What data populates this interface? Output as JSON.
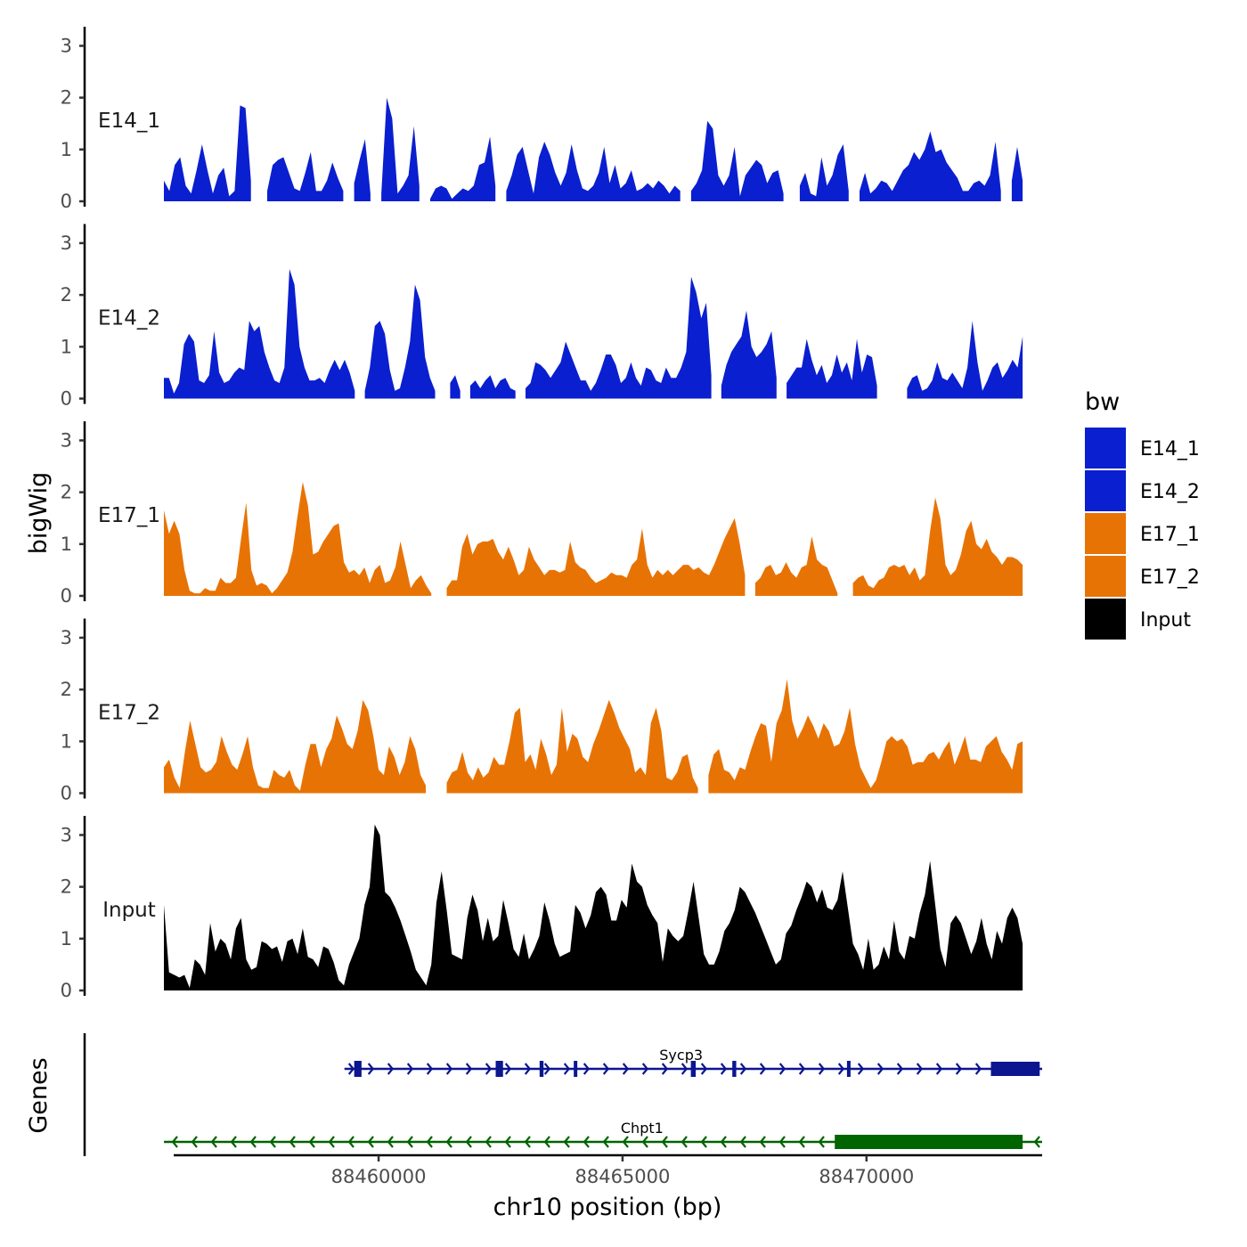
{
  "chart_data": {
    "type": "area",
    "title": "",
    "xlabel": "chr10 position (bp)",
    "ylabel": "bigWig",
    "genes_panel_label": "Genes",
    "xlim": [
      88455800,
      88473600
    ],
    "data_range": [
      88455600,
      88473200
    ],
    "x_ticks": [
      88460000,
      88465000,
      88470000
    ],
    "x_tick_labels": [
      "88460000",
      "88465000",
      "88470000"
    ],
    "ylim": [
      0,
      3.3
    ],
    "y_ticks": [
      0,
      1,
      2,
      3
    ],
    "y_tick_labels": [
      "0",
      "1",
      "2",
      "3"
    ],
    "legend": {
      "title": "bw",
      "position": "right",
      "entries": [
        {
          "label": "E14_1",
          "color": "#0a1fcf"
        },
        {
          "label": "E14_2",
          "color": "#0a1fcf"
        },
        {
          "label": "E17_1",
          "color": "#e87305"
        },
        {
          "label": "E17_2",
          "color": "#e87305"
        },
        {
          "label": "Input",
          "color": "#000000"
        }
      ]
    },
    "series": [
      {
        "name": "E14_1",
        "color": "#0a1fcf",
        "values": [
          0.4,
          0.2,
          0.7,
          0.85,
          0.3,
          0.15,
          0.6,
          1.1,
          0.6,
          0.15,
          0.5,
          0.65,
          0.1,
          0.2,
          1.85,
          1.8,
          0.4,
          null,
          null,
          0.2,
          0.7,
          0.8,
          0.85,
          0.55,
          0.25,
          0.2,
          0.55,
          0.95,
          0.2,
          0.2,
          0.4,
          0.75,
          0.45,
          0.2,
          null,
          0.35,
          0.8,
          1.2,
          0.15,
          null,
          0.15,
          2.0,
          1.6,
          0.15,
          0.3,
          0.5,
          1.45,
          0.3,
          null,
          0.05,
          0.25,
          0.3,
          0.25,
          0.05,
          0.15,
          0.25,
          0.2,
          0.3,
          0.7,
          0.75,
          1.25,
          0.3,
          null,
          0.2,
          0.5,
          0.9,
          1.05,
          0.6,
          0.15,
          0.85,
          1.15,
          0.9,
          0.55,
          0.3,
          0.55,
          1.1,
          0.6,
          0.25,
          0.2,
          0.3,
          0.55,
          1.05,
          0.35,
          0.7,
          0.25,
          0.35,
          0.6,
          0.2,
          0.25,
          0.35,
          0.25,
          0.4,
          0.3,
          0.15,
          0.3,
          0.2,
          null,
          0.2,
          0.35,
          0.6,
          1.55,
          1.4,
          0.5,
          0.3,
          0.5,
          1.05,
          0.1,
          0.5,
          0.65,
          0.8,
          0.7,
          0.35,
          0.55,
          0.6,
          0.15,
          null,
          null,
          0.3,
          0.55,
          0.15,
          0.1,
          0.85,
          0.3,
          0.5,
          0.9,
          1.1,
          0.2,
          null,
          0.2,
          0.55,
          0.15,
          0.25,
          0.4,
          0.35,
          0.2,
          0.4,
          0.6,
          0.7,
          0.95,
          0.8,
          1.0,
          1.35,
          0.95,
          1.0,
          0.75,
          0.6,
          0.45,
          0.2,
          0.2,
          0.35,
          0.4,
          0.3,
          0.5,
          1.15,
          0.2,
          null,
          0.4,
          1.05,
          0.4
        ],
        "label": "E14_1"
      },
      {
        "name": "E14_2",
        "color": "#0a1fcf",
        "values": [
          0.4,
          0.4,
          0.1,
          0.3,
          1.05,
          1.25,
          1.1,
          0.35,
          0.3,
          0.45,
          1.3,
          0.5,
          0.3,
          0.35,
          0.5,
          0.6,
          0.55,
          1.5,
          1.3,
          1.4,
          0.9,
          0.6,
          0.35,
          0.3,
          0.6,
          2.5,
          2.2,
          1.0,
          0.6,
          0.35,
          0.35,
          0.4,
          0.3,
          0.55,
          0.75,
          0.55,
          0.75,
          0.5,
          0.15,
          null,
          0.15,
          0.6,
          1.4,
          1.5,
          1.25,
          0.55,
          0.15,
          0.2,
          0.6,
          1.1,
          2.2,
          1.9,
          0.8,
          0.4,
          0.15,
          null,
          null,
          0.3,
          0.45,
          0.15,
          null,
          0.25,
          0.35,
          0.2,
          0.35,
          0.45,
          0.2,
          0.35,
          0.4,
          0.2,
          0.15,
          null,
          0.2,
          0.3,
          0.7,
          0.65,
          0.55,
          0.4,
          0.55,
          0.7,
          1.1,
          0.85,
          0.6,
          0.35,
          0.35,
          0.15,
          0.3,
          0.55,
          0.85,
          0.85,
          0.65,
          0.3,
          0.4,
          0.7,
          0.4,
          0.25,
          0.6,
          0.55,
          0.35,
          0.3,
          0.6,
          0.4,
          0.4,
          0.6,
          0.9,
          2.35,
          2.05,
          1.55,
          1.85,
          0.45,
          null,
          0.25,
          0.65,
          0.9,
          1.05,
          1.2,
          1.7,
          1.0,
          0.8,
          0.9,
          1.05,
          1.3,
          0.4,
          null,
          0.3,
          0.45,
          0.6,
          0.6,
          1.15,
          0.75,
          0.45,
          0.65,
          0.3,
          0.45,
          0.85,
          0.5,
          0.7,
          0.35,
          1.15,
          0.5,
          0.85,
          0.8,
          0.25,
          null,
          null,
          null,
          null,
          null,
          0.2,
          0.4,
          0.45,
          0.15,
          0.2,
          0.35,
          0.7,
          0.4,
          0.35,
          0.5,
          0.35,
          0.2,
          0.6,
          1.5,
          0.7,
          0.15,
          0.35,
          0.6,
          0.7,
          0.4,
          0.55,
          0.75,
          0.6,
          1.2
        ],
        "label": "E14_2"
      },
      {
        "name": "E17_1",
        "color": "#e87305",
        "values": [
          1.65,
          1.2,
          1.45,
          1.2,
          0.5,
          0.1,
          0.05,
          0.05,
          0.15,
          0.1,
          0.1,
          0.35,
          0.25,
          0.25,
          0.35,
          1.1,
          1.8,
          0.5,
          0.2,
          0.25,
          0.2,
          0.05,
          0.15,
          0.3,
          0.45,
          0.85,
          1.55,
          2.2,
          1.75,
          0.8,
          0.85,
          1.05,
          1.2,
          1.35,
          1.4,
          0.65,
          0.45,
          0.5,
          0.4,
          0.55,
          0.25,
          0.5,
          0.6,
          0.25,
          0.3,
          0.55,
          1.05,
          0.6,
          0.15,
          0.3,
          0.4,
          0.2,
          0.05,
          null,
          null,
          0.15,
          0.3,
          0.3,
          0.95,
          1.2,
          0.8,
          1.0,
          1.05,
          1.05,
          1.1,
          0.85,
          0.7,
          0.95,
          0.7,
          0.4,
          0.5,
          0.95,
          0.7,
          0.55,
          0.4,
          0.5,
          0.5,
          0.45,
          0.5,
          1.05,
          0.65,
          0.55,
          0.5,
          0.35,
          0.25,
          0.3,
          0.35,
          0.45,
          0.4,
          0.4,
          0.35,
          0.6,
          0.7,
          1.3,
          0.6,
          0.35,
          0.5,
          0.4,
          0.5,
          0.4,
          0.5,
          0.6,
          0.6,
          0.5,
          0.55,
          0.45,
          0.4,
          0.6,
          0.85,
          1.1,
          1.3,
          1.5,
          1.0,
          0.4,
          null,
          0.25,
          0.35,
          0.55,
          0.6,
          0.4,
          0.45,
          0.65,
          0.45,
          0.35,
          0.55,
          0.6,
          1.15,
          0.7,
          0.6,
          0.55,
          0.3,
          0.05,
          null,
          null,
          0.25,
          0.35,
          0.4,
          0.2,
          0.15,
          0.3,
          0.35,
          0.55,
          0.6,
          0.55,
          0.6,
          0.4,
          0.55,
          0.3,
          0.4,
          1.25,
          1.9,
          1.5,
          0.6,
          0.4,
          0.5,
          0.8,
          1.25,
          1.45,
          1.0,
          0.9,
          1.1,
          0.85,
          0.75,
          0.6,
          0.75,
          0.75,
          0.7,
          0.6
        ],
        "label": "E17_1"
      },
      {
        "name": "E17_2",
        "color": "#e87305",
        "values": [
          0.5,
          0.65,
          0.3,
          0.1,
          0.8,
          1.4,
          0.95,
          0.5,
          0.4,
          0.45,
          0.6,
          1.1,
          0.8,
          0.55,
          0.45,
          0.75,
          1.1,
          0.5,
          0.15,
          0.1,
          0.1,
          0.45,
          0.35,
          0.3,
          0.45,
          0.15,
          0.05,
          0.55,
          0.95,
          0.95,
          0.5,
          0.85,
          1.05,
          1.5,
          1.25,
          0.95,
          0.85,
          1.2,
          1.8,
          1.6,
          1.1,
          0.45,
          0.35,
          0.9,
          0.7,
          0.35,
          0.6,
          1.1,
          0.85,
          0.35,
          0.15,
          null,
          null,
          null,
          0.2,
          0.4,
          0.45,
          0.8,
          0.4,
          0.25,
          0.5,
          0.3,
          0.4,
          0.7,
          0.55,
          0.55,
          1.0,
          1.55,
          1.65,
          0.6,
          0.75,
          0.45,
          1.05,
          0.75,
          0.35,
          0.55,
          1.65,
          0.8,
          1.15,
          1.05,
          0.7,
          0.6,
          0.95,
          1.2,
          1.5,
          1.8,
          1.55,
          1.25,
          1.05,
          0.85,
          0.4,
          0.5,
          0.35,
          1.35,
          1.65,
          1.2,
          0.3,
          0.25,
          0.4,
          0.7,
          0.75,
          0.3,
          0.1,
          null,
          0.35,
          0.75,
          0.85,
          0.45,
          0.4,
          0.25,
          0.5,
          0.45,
          0.8,
          1.1,
          1.35,
          1.3,
          0.6,
          1.35,
          1.6,
          2.2,
          1.4,
          1.05,
          1.25,
          1.5,
          1.3,
          1.05,
          1.35,
          1.2,
          0.9,
          0.95,
          1.2,
          1.65,
          0.95,
          0.5,
          0.3,
          0.1,
          0.25,
          0.6,
          1.0,
          1.1,
          1.0,
          1.05,
          0.9,
          0.55,
          0.6,
          0.6,
          0.75,
          0.8,
          0.65,
          0.85,
          1.0,
          0.55,
          0.8,
          1.1,
          0.65,
          0.65,
          0.6,
          0.9,
          1.0,
          1.1,
          0.8,
          0.65,
          0.45,
          0.95,
          1.0
        ],
        "label": "E17_2"
      },
      {
        "name": "Input",
        "color": "#000000",
        "values": [
          1.65,
          0.35,
          0.3,
          0.25,
          0.3,
          0.05,
          0.6,
          0.5,
          0.3,
          1.3,
          0.75,
          1.0,
          0.9,
          0.6,
          1.2,
          1.4,
          0.6,
          0.4,
          0.45,
          0.95,
          0.9,
          0.8,
          0.85,
          0.55,
          0.95,
          1.0,
          0.7,
          1.2,
          0.65,
          0.6,
          0.45,
          0.85,
          0.8,
          0.55,
          0.2,
          0.1,
          0.5,
          0.75,
          1.0,
          1.65,
          2.0,
          3.2,
          3.0,
          1.9,
          1.8,
          1.6,
          1.35,
          1.05,
          0.75,
          0.4,
          0.25,
          0.1,
          0.5,
          1.7,
          2.3,
          1.55,
          0.7,
          0.65,
          0.6,
          1.4,
          1.85,
          1.55,
          0.95,
          1.4,
          0.95,
          1.05,
          1.75,
          1.3,
          0.8,
          0.65,
          1.1,
          0.6,
          0.8,
          1.05,
          1.7,
          1.35,
          0.9,
          0.65,
          0.7,
          0.75,
          1.65,
          1.5,
          1.2,
          1.45,
          1.9,
          2.0,
          1.85,
          1.35,
          1.35,
          1.75,
          1.6,
          2.45,
          2.1,
          2.0,
          1.65,
          1.45,
          1.3,
          0.55,
          1.2,
          1.05,
          0.95,
          1.05,
          1.55,
          2.1,
          1.4,
          0.7,
          0.5,
          0.5,
          0.75,
          1.15,
          1.3,
          1.55,
          2.0,
          1.9,
          1.7,
          1.5,
          1.25,
          1.0,
          0.75,
          0.5,
          0.6,
          1.1,
          1.25,
          1.55,
          1.8,
          2.1,
          2.0,
          1.7,
          1.95,
          1.6,
          1.55,
          1.75,
          2.3,
          1.6,
          0.9,
          0.7,
          0.4,
          1.0,
          0.4,
          0.5,
          0.85,
          0.6,
          1.35,
          0.75,
          0.6,
          1.05,
          1.0,
          1.5,
          1.85,
          2.5,
          1.65,
          0.8,
          0.45,
          1.3,
          1.45,
          1.3,
          1.0,
          0.7,
          0.95,
          1.4,
          0.9,
          0.6,
          1.15,
          0.9,
          1.4,
          1.6,
          1.4,
          0.9
        ],
        "label": "Input"
      }
    ],
    "genes": [
      {
        "name": "Sycp3",
        "strand": "+",
        "color": "#0c168f",
        "start": 88459300,
        "end": 88473600,
        "exons": [
          [
            88459500,
            88459650
          ],
          [
            88462400,
            88462550
          ],
          [
            88463300,
            88463380
          ],
          [
            88464000,
            88464050
          ],
          [
            88466400,
            88466500
          ],
          [
            88467250,
            88467330
          ],
          [
            88469600,
            88469660
          ],
          [
            88472550,
            88473550
          ]
        ],
        "cds": [
          [
            88472550,
            88473550
          ]
        ]
      },
      {
        "name": "Chpt1",
        "strand": "-",
        "color": "#006400",
        "start": 88455600,
        "end": 88473600,
        "exons": [
          [
            88469350,
            88473200
          ]
        ],
        "cds": [
          [
            88469350,
            88473200
          ]
        ]
      }
    ]
  }
}
